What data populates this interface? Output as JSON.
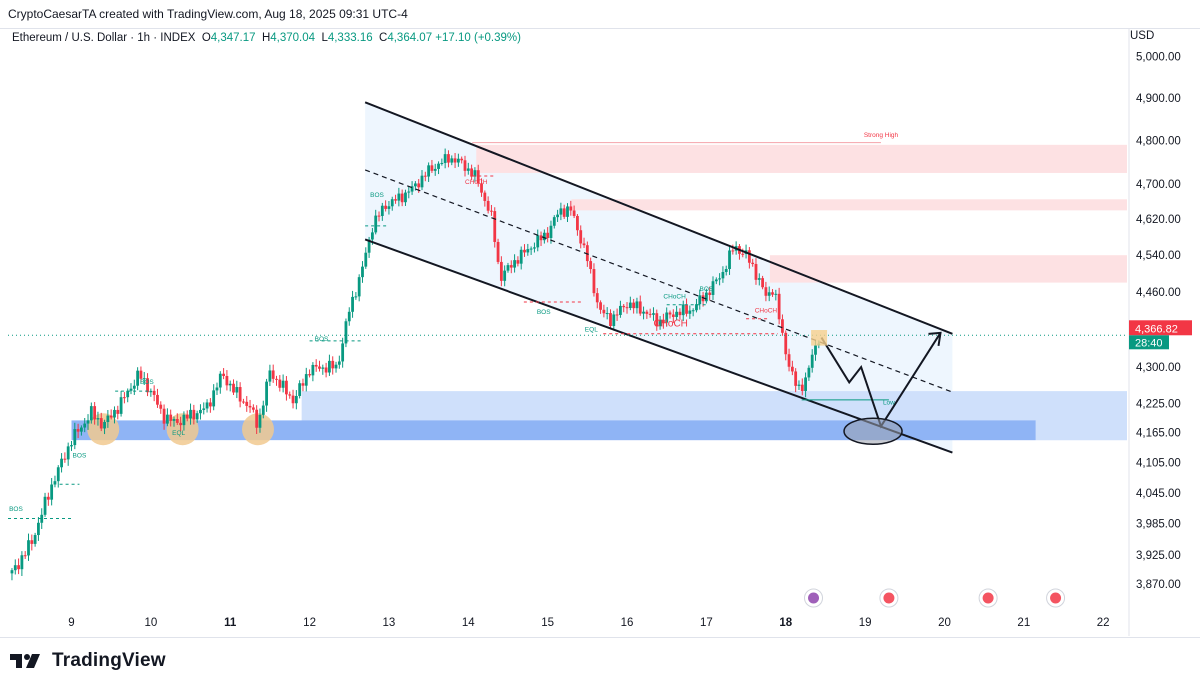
{
  "header": {
    "credit": "CryptoCaesarTA created with TradingView.com, Aug 18, 2025 09:31 UTC-4"
  },
  "legend": {
    "symbol": "Ethereum / U.S. Dollar · 1h · INDEX",
    "o_label": "O",
    "o_value": "4,347.17",
    "h_label": "H",
    "h_value": "4,370.04",
    "l_label": "L",
    "l_value": "4,333.16",
    "c_label": "C",
    "c_value": "4,364.07",
    "change": "+17.10 (+0.39%)"
  },
  "axis": {
    "currency": "USD"
  },
  "price_tags": {
    "last_price": "4,366.82",
    "countdown": "28:40"
  },
  "colors": {
    "up": "#089981",
    "down": "#f23645",
    "channel_fill": "#e8f3fd",
    "supply_zone": "#fde1e3",
    "demand_zone_light": "#cfe0fb",
    "demand_zone_dark": "#8fb4f5",
    "circle_highlight": "#f1c98f",
    "price_tag_red": "#f23645",
    "price_tag_green": "#089981"
  },
  "branding": {
    "name": "TradingView"
  },
  "chart_data": {
    "type": "candlestick",
    "title": "Ethereum / U.S. Dollar · 1h · INDEX",
    "x_tick_labels": [
      "9",
      "10",
      "11",
      "12",
      "13",
      "14",
      "15",
      "16",
      "17",
      "18",
      "19",
      "20",
      "21",
      "22"
    ],
    "x_tick_days": [
      9,
      10,
      11,
      12,
      13,
      14,
      15,
      16,
      17,
      18,
      19,
      20,
      21,
      22
    ],
    "x_range_days": [
      8.2,
      22.3
    ],
    "y_tick_labels": [
      "5,000.00",
      "4,900.00",
      "4,800.00",
      "4,700.00",
      "4,620.00",
      "4,540.00",
      "4,460.00",
      "4,300.00",
      "4,225.00",
      "4,165.00",
      "4,105.00",
      "4,045.00",
      "3,985.00",
      "3,925.00",
      "3,870.00"
    ],
    "y_tick_values": [
      5000,
      4900,
      4800,
      4700,
      4620,
      4540,
      4460,
      4300,
      4225,
      4165,
      4105,
      4045,
      3985,
      3925,
      3870
    ],
    "y_scale": "log",
    "y_range": [
      3840,
      5050
    ],
    "price_path": [
      [
        8.25,
        3890
      ],
      [
        8.5,
        3950
      ],
      [
        8.75,
        4060
      ],
      [
        9.0,
        4150
      ],
      [
        9.25,
        4205
      ],
      [
        9.4,
        4180
      ],
      [
        9.6,
        4220
      ],
      [
        9.85,
        4285
      ],
      [
        10.0,
        4250
      ],
      [
        10.15,
        4200
      ],
      [
        10.3,
        4185
      ],
      [
        10.5,
        4200
      ],
      [
        10.7,
        4215
      ],
      [
        10.9,
        4285
      ],
      [
        11.05,
        4250
      ],
      [
        11.25,
        4215
      ],
      [
        11.35,
        4180
      ],
      [
        11.5,
        4290
      ],
      [
        11.7,
        4250
      ],
      [
        11.8,
        4230
      ],
      [
        12.0,
        4295
      ],
      [
        12.2,
        4300
      ],
      [
        12.35,
        4300
      ],
      [
        12.5,
        4420
      ],
      [
        12.65,
        4500
      ],
      [
        12.8,
        4610
      ],
      [
        12.95,
        4650
      ],
      [
        13.15,
        4670
      ],
      [
        13.3,
        4690
      ],
      [
        13.5,
        4730
      ],
      [
        13.75,
        4760
      ],
      [
        13.9,
        4750
      ],
      [
        14.1,
        4715
      ],
      [
        14.3,
        4620
      ],
      [
        14.4,
        4490
      ],
      [
        14.6,
        4530
      ],
      [
        14.8,
        4560
      ],
      [
        15.0,
        4590
      ],
      [
        15.15,
        4640
      ],
      [
        15.3,
        4640
      ],
      [
        15.5,
        4530
      ],
      [
        15.65,
        4420
      ],
      [
        15.8,
        4400
      ],
      [
        16.0,
        4435
      ],
      [
        16.2,
        4420
      ],
      [
        16.4,
        4395
      ],
      [
        16.6,
        4415
      ],
      [
        16.8,
        4420
      ],
      [
        17.0,
        4455
      ],
      [
        17.2,
        4500
      ],
      [
        17.35,
        4560
      ],
      [
        17.5,
        4540
      ],
      [
        17.6,
        4510
      ],
      [
        17.75,
        4450
      ],
      [
        17.85,
        4470
      ],
      [
        17.95,
        4370
      ],
      [
        18.05,
        4300
      ],
      [
        18.15,
        4250
      ],
      [
        18.25,
        4275
      ],
      [
        18.35,
        4330
      ],
      [
        18.42,
        4364
      ]
    ],
    "annotations": [
      {
        "text": "BOS",
        "x": 8.3,
        "y": 4010
      },
      {
        "text": "BOS",
        "x": 9.1,
        "y": 4115
      },
      {
        "text": "BOS",
        "x": 9.95,
        "y": 4265
      },
      {
        "text": "EQL",
        "x": 10.35,
        "y": 4160
      },
      {
        "text": "BOS",
        "x": 12.15,
        "y": 4355
      },
      {
        "text": "BOS",
        "x": 12.85,
        "y": 4670
      },
      {
        "text": "CHoCH",
        "x": 14.1,
        "y": 4700
      },
      {
        "text": "BOS",
        "x": 14.95,
        "y": 4412
      },
      {
        "text": "EQL",
        "x": 15.55,
        "y": 4375
      },
      {
        "text": "CHoCH",
        "x": 16.55,
        "y": 4385
      },
      {
        "text": "CHoCH",
        "x": 16.6,
        "y": 4445
      },
      {
        "text": "BOS",
        "x": 17.0,
        "y": 4462
      },
      {
        "text": "CHoCH",
        "x": 17.75,
        "y": 4415
      },
      {
        "text": "Strong High",
        "x": 19.2,
        "y": 4808
      },
      {
        "text": "Low",
        "x": 19.3,
        "y": 4222
      }
    ]
  }
}
